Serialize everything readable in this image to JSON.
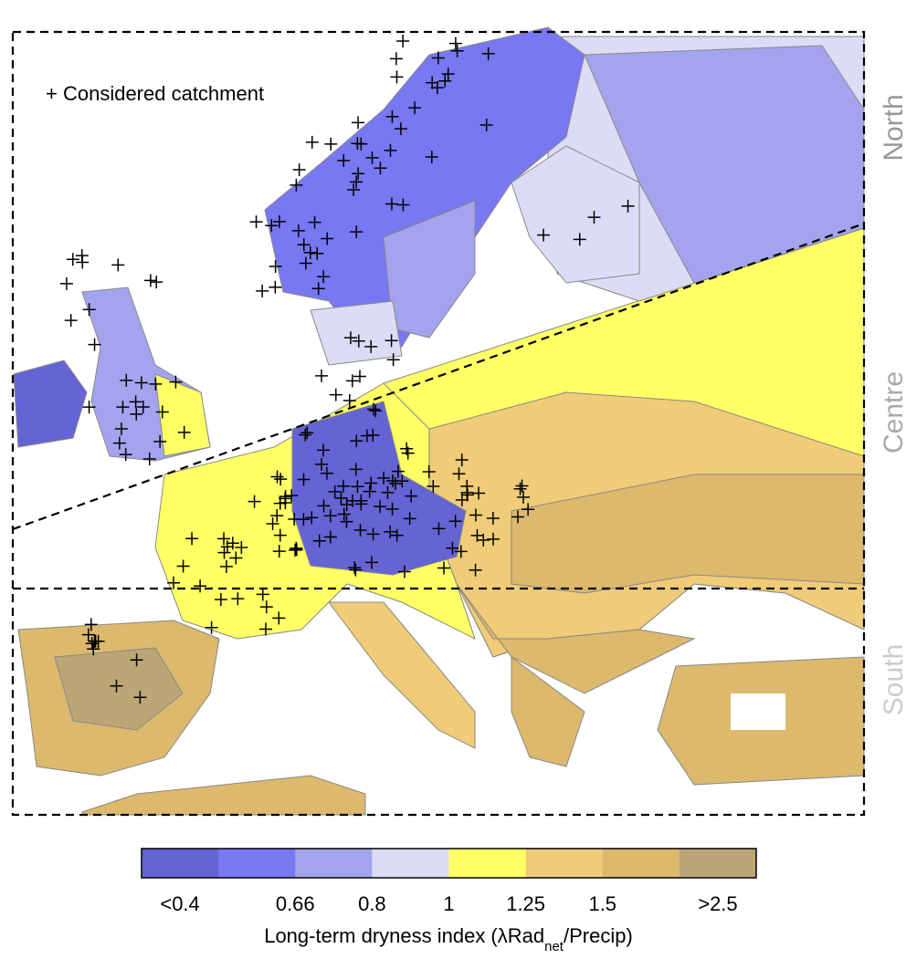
{
  "legend": {
    "label": "+ Considered catchment"
  },
  "regions": [
    "North",
    "Centre",
    "South"
  ],
  "colorbar": {
    "colors": [
      "#6464d4",
      "#7878f2",
      "#a4a4ee",
      "#dcdcf6",
      "#ffff66",
      "#f0cc78",
      "#dcb96c",
      "#bca676"
    ],
    "tick_labels": [
      "<0.4",
      "0.66",
      "0.8",
      "1",
      "1.25",
      "1.5",
      ">2.5"
    ],
    "title": {
      "before": "Long-term dryness index (λRad",
      "sub": "net",
      "after": "/Precip)"
    }
  }
}
